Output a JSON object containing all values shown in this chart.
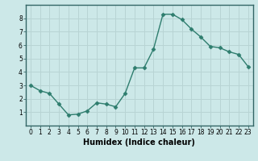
{
  "x": [
    0,
    1,
    2,
    3,
    4,
    5,
    6,
    7,
    8,
    9,
    10,
    11,
    12,
    13,
    14,
    15,
    16,
    17,
    18,
    19,
    20,
    21,
    22,
    23
  ],
  "y": [
    3.0,
    2.6,
    2.4,
    1.6,
    0.8,
    0.85,
    1.1,
    1.7,
    1.6,
    1.4,
    2.4,
    4.3,
    4.3,
    5.7,
    8.3,
    8.3,
    7.9,
    7.2,
    6.6,
    5.9,
    5.8,
    5.5,
    5.3,
    4.4
  ],
  "line_color": "#2e7d6e",
  "marker": "D",
  "marker_size": 2.5,
  "linewidth": 1.0,
  "xlabel": "Humidex (Indice chaleur)",
  "xlim": [
    -0.5,
    23.5
  ],
  "ylim": [
    0,
    9
  ],
  "yticks": [
    1,
    2,
    3,
    4,
    5,
    6,
    7,
    8
  ],
  "xticks": [
    0,
    1,
    2,
    3,
    4,
    5,
    6,
    7,
    8,
    9,
    10,
    11,
    12,
    13,
    14,
    15,
    16,
    17,
    18,
    19,
    20,
    21,
    22,
    23
  ],
  "bg_color": "#cce8e8",
  "grid_color": "#b8d4d4",
  "tick_fontsize": 5.5,
  "xlabel_fontsize": 7,
  "border_color": "#4a7a7a",
  "spine_color": "#336666"
}
